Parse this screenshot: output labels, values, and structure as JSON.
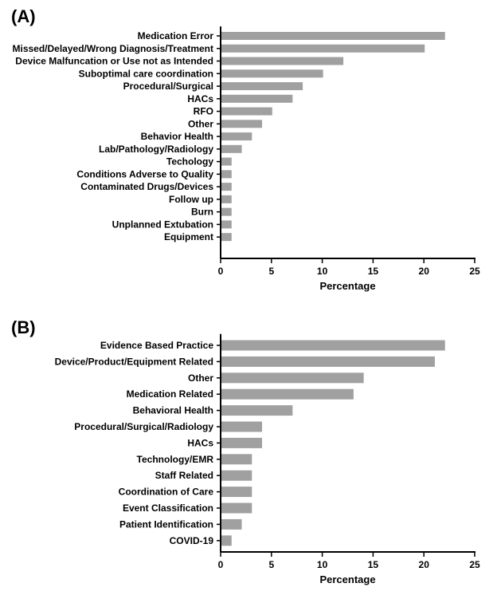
{
  "chart_data": [
    {
      "type": "bar",
      "orientation": "horizontal",
      "panel_label": "(A)",
      "categories": [
        "Medication Error",
        "Missed/Delayed/Wrong Diagnosis/Treatment",
        "Device Malfuncation or Use not as Intended",
        "Suboptimal care coordination",
        "Procedural/Surgical",
        "HACs",
        "RFO",
        "Other",
        "Behavior Health",
        "Lab/Pathology/Radiology",
        "Techology",
        "Conditions Adverse to Quality",
        "Contaminated Drugs/Devices",
        "Follow up",
        "Burn",
        "Unplanned Extubation",
        "Equipment"
      ],
      "values": [
        22,
        20,
        12,
        10,
        8,
        7,
        5,
        4,
        3,
        2,
        1,
        1,
        1,
        1,
        1,
        1,
        1
      ],
      "xlabel": "Percentage",
      "xlim": [
        0,
        25
      ],
      "xticks": [
        "0",
        "5",
        "10",
        "15",
        "20",
        "25"
      ],
      "bar_color": "#a0a0a0",
      "grid": false
    },
    {
      "type": "bar",
      "orientation": "horizontal",
      "panel_label": "(B)",
      "categories": [
        "Evidence Based Practice",
        "Device/Product/Equipment Related",
        "Other",
        "Medication Related",
        "Behavioral Health",
        "Procedural/Surgical/Radiology",
        "HACs",
        "Technology/EMR",
        "Staff Related",
        "Coordination of Care",
        "Event Classification",
        "Patient Identification",
        "COVID-19"
      ],
      "values": [
        22,
        21,
        14,
        13,
        7,
        4,
        4,
        3,
        3,
        3,
        3,
        2,
        1
      ],
      "xlabel": "Percentage",
      "xlim": [
        0,
        25
      ],
      "xticks": [
        "0",
        "5",
        "10",
        "15",
        "20",
        "25"
      ],
      "bar_color": "#a0a0a0",
      "grid": false
    }
  ]
}
